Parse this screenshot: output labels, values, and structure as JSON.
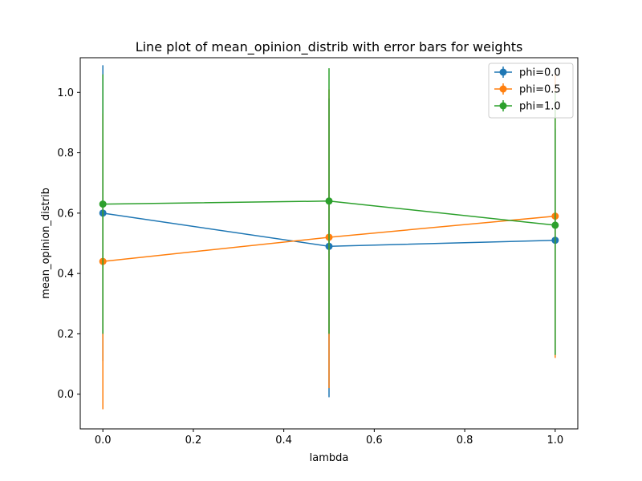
{
  "chart_data": {
    "type": "line",
    "title": "Line plot of mean_opinion_distrib with error bars for weights",
    "xlabel": "lambda",
    "ylabel": "mean_opinion_distrib",
    "xlim": [
      -0.05,
      1.05
    ],
    "ylim": [
      -0.115,
      1.115
    ],
    "xticks": [
      0.0,
      0.2,
      0.4,
      0.6,
      0.8,
      1.0
    ],
    "xtick_labels": [
      "0.0",
      "0.2",
      "0.4",
      "0.6",
      "0.8",
      "1.0"
    ],
    "yticks": [
      0.0,
      0.2,
      0.4,
      0.6,
      0.8,
      1.0
    ],
    "ytick_labels": [
      "0.0",
      "0.2",
      "0.4",
      "0.6",
      "0.8",
      "1.0"
    ],
    "grid": false,
    "legend": "top-right",
    "x": [
      0.0,
      0.5,
      1.0
    ],
    "series": [
      {
        "name": "phi=0.0",
        "color": "#1f77b4",
        "values": [
          0.6,
          0.49,
          0.51
        ],
        "yerr_low": [
          0.11,
          -0.01,
          0.13
        ],
        "yerr_high": [
          1.09,
          0.98,
          0.88
        ]
      },
      {
        "name": "phi=0.5",
        "color": "#ff7f0e",
        "values": [
          0.44,
          0.52,
          0.59
        ],
        "yerr_low": [
          -0.05,
          0.02,
          0.12
        ],
        "yerr_high": [
          0.93,
          1.01,
          1.06
        ]
      },
      {
        "name": "phi=1.0",
        "color": "#2ca02c",
        "values": [
          0.63,
          0.64,
          0.56
        ],
        "yerr_low": [
          0.2,
          0.2,
          0.13
        ],
        "yerr_high": [
          1.06,
          1.08,
          1.0
        ]
      }
    ]
  }
}
